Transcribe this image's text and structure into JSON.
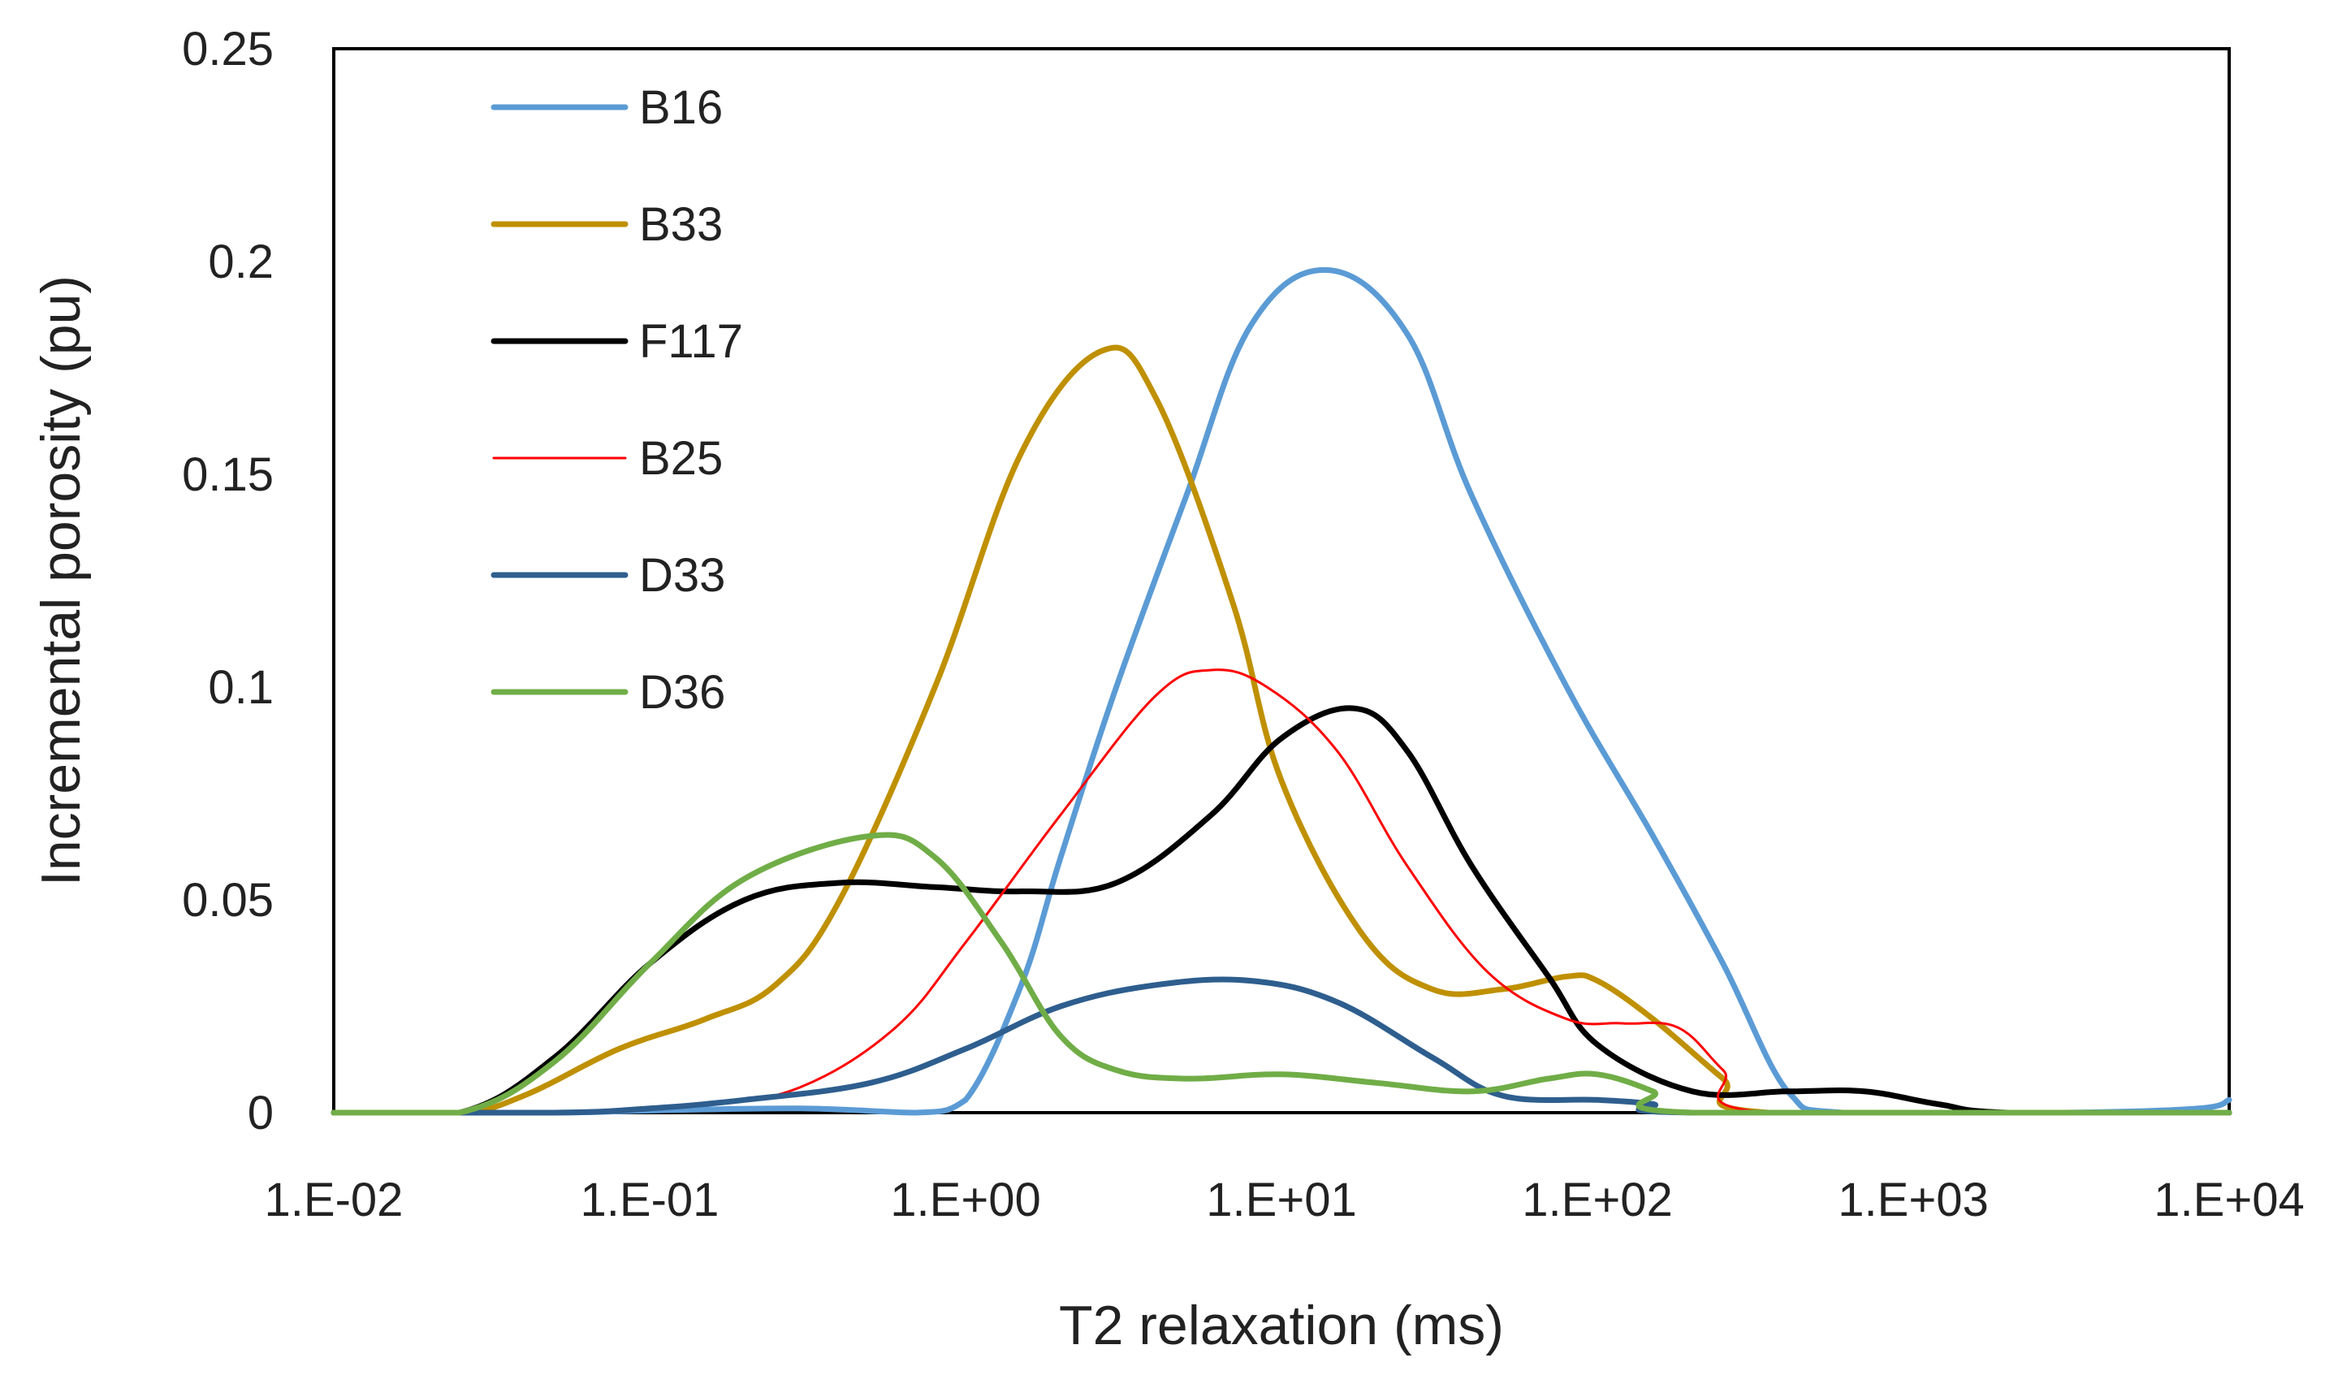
{
  "chart_data": {
    "type": "line",
    "title": "",
    "xlabel": "T2 relaxation (ms)",
    "ylabel": "Incremental porosity (pu)",
    "x_scale": "log10",
    "xlim": [
      0.01,
      10000
    ],
    "ylim": [
      0,
      0.25
    ],
    "x_ticks": [
      {
        "value": 0.01,
        "label": "1.E-02"
      },
      {
        "value": 0.1,
        "label": "1.E-01"
      },
      {
        "value": 1,
        "label": "1.E+00"
      },
      {
        "value": 10,
        "label": "1.E+01"
      },
      {
        "value": 100,
        "label": "1.E+02"
      },
      {
        "value": 1000,
        "label": "1.E+03"
      },
      {
        "value": 10000,
        "label": "1.E+04"
      }
    ],
    "y_ticks": [
      {
        "value": 0,
        "label": "0"
      },
      {
        "value": 0.05,
        "label": "0.05"
      },
      {
        "value": 0.1,
        "label": "0.1"
      },
      {
        "value": 0.15,
        "label": "0.15"
      },
      {
        "value": 0.2,
        "label": "0.2"
      },
      {
        "value": 0.25,
        "label": "0.25"
      }
    ],
    "grid": false,
    "legend_position": "top-left",
    "series": [
      {
        "name": "B16",
        "color": "#5b9bd5",
        "width": 7,
        "points": [
          [
            0.01,
            0
          ],
          [
            0.05,
            0
          ],
          [
            0.1,
            0.0005
          ],
          [
            0.3,
            0.001
          ],
          [
            0.7,
            0
          ],
          [
            1,
            0.003
          ],
          [
            1.5,
            0.03
          ],
          [
            2,
            0.06
          ],
          [
            3,
            0.1
          ],
          [
            5,
            0.145
          ],
          [
            8,
            0.185
          ],
          [
            14,
            0.198
          ],
          [
            25,
            0.183
          ],
          [
            40,
            0.145
          ],
          [
            80,
            0.1
          ],
          [
            150,
            0.065
          ],
          [
            250,
            0.035
          ],
          [
            400,
            0.005
          ],
          [
            600,
            0
          ],
          [
            3000,
            0
          ],
          [
            8000,
            0.001
          ],
          [
            10000,
            0.003
          ]
        ]
      },
      {
        "name": "B33",
        "color": "#bf9000",
        "width": 7,
        "points": [
          [
            0.01,
            0
          ],
          [
            0.025,
            0
          ],
          [
            0.04,
            0.004
          ],
          [
            0.08,
            0.015
          ],
          [
            0.15,
            0.022
          ],
          [
            0.25,
            0.03
          ],
          [
            0.4,
            0.05
          ],
          [
            0.8,
            0.1
          ],
          [
            1.5,
            0.155
          ],
          [
            2.7,
            0.179
          ],
          [
            4,
            0.168
          ],
          [
            7,
            0.12
          ],
          [
            10,
            0.078
          ],
          [
            18,
            0.042
          ],
          [
            30,
            0.029
          ],
          [
            50,
            0.029
          ],
          [
            80,
            0.032
          ],
          [
            100,
            0.031
          ],
          [
            150,
            0.022
          ],
          [
            250,
            0.008
          ],
          [
            350,
            0
          ],
          [
            10000,
            0
          ]
        ]
      },
      {
        "name": "F117",
        "color": "#000000",
        "width": 7,
        "points": [
          [
            0.01,
            0
          ],
          [
            0.025,
            0
          ],
          [
            0.05,
            0.013
          ],
          [
            0.1,
            0.035
          ],
          [
            0.2,
            0.05
          ],
          [
            0.4,
            0.054
          ],
          [
            0.8,
            0.053
          ],
          [
            1.5,
            0.052
          ],
          [
            3,
            0.054
          ],
          [
            6,
            0.07
          ],
          [
            10,
            0.088
          ],
          [
            17,
            0.095
          ],
          [
            25,
            0.085
          ],
          [
            40,
            0.058
          ],
          [
            70,
            0.032
          ],
          [
            100,
            0.016
          ],
          [
            200,
            0.005
          ],
          [
            400,
            0.005
          ],
          [
            700,
            0.005
          ],
          [
            1200,
            0.002
          ],
          [
            2000,
            0
          ],
          [
            10000,
            0
          ]
        ]
      },
      {
        "name": "B25",
        "color": "#ff0000",
        "width": 3,
        "points": [
          [
            0.01,
            0
          ],
          [
            0.05,
            0
          ],
          [
            0.15,
            0.002
          ],
          [
            0.3,
            0.006
          ],
          [
            0.6,
            0.02
          ],
          [
            1,
            0.04
          ],
          [
            2,
            0.07
          ],
          [
            4,
            0.098
          ],
          [
            6,
            0.104
          ],
          [
            9,
            0.1
          ],
          [
            15,
            0.085
          ],
          [
            25,
            0.058
          ],
          [
            45,
            0.033
          ],
          [
            80,
            0.022
          ],
          [
            120,
            0.021
          ],
          [
            180,
            0.02
          ],
          [
            250,
            0.01
          ],
          [
            350,
            0
          ],
          [
            10000,
            0
          ]
        ]
      },
      {
        "name": "D33",
        "color": "#2e5e8e",
        "width": 7,
        "points": [
          [
            0.01,
            0
          ],
          [
            0.05,
            0
          ],
          [
            0.1,
            0.001
          ],
          [
            0.2,
            0.003
          ],
          [
            0.5,
            0.007
          ],
          [
            1,
            0.015
          ],
          [
            2,
            0.025
          ],
          [
            4,
            0.03
          ],
          [
            8,
            0.031
          ],
          [
            15,
            0.026
          ],
          [
            30,
            0.013
          ],
          [
            50,
            0.004
          ],
          [
            100,
            0.003
          ],
          [
            150,
            0.002
          ],
          [
            200,
            0
          ],
          [
            10000,
            0
          ]
        ]
      },
      {
        "name": "D36",
        "color": "#70ad47",
        "width": 7,
        "points": [
          [
            0.01,
            0
          ],
          [
            0.025,
            0
          ],
          [
            0.05,
            0.012
          ],
          [
            0.1,
            0.035
          ],
          [
            0.2,
            0.055
          ],
          [
            0.5,
            0.065
          ],
          [
            0.8,
            0.06
          ],
          [
            1.3,
            0.04
          ],
          [
            2,
            0.018
          ],
          [
            3,
            0.01
          ],
          [
            5,
            0.008
          ],
          [
            10,
            0.009
          ],
          [
            20,
            0.007
          ],
          [
            40,
            0.005
          ],
          [
            70,
            0.008
          ],
          [
            100,
            0.009
          ],
          [
            150,
            0.005
          ],
          [
            200,
            0
          ],
          [
            10000,
            0
          ]
        ]
      }
    ]
  }
}
